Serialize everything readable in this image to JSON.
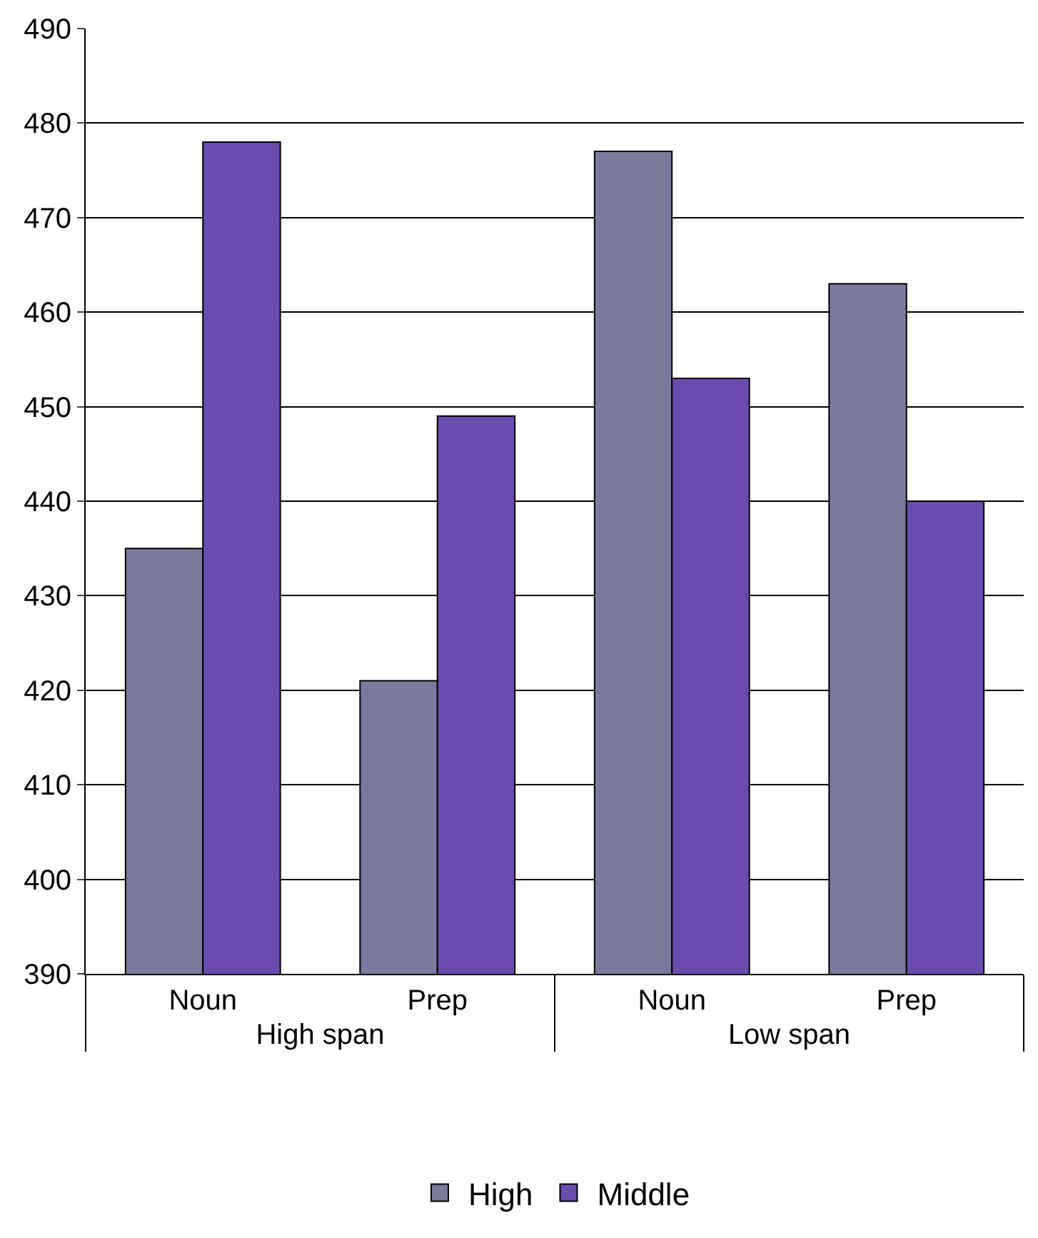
{
  "chart_data": {
    "type": "bar",
    "categories": [
      "Noun",
      "Prep",
      "Noun",
      "Prep"
    ],
    "annotations": [
      "High span",
      "Low span"
    ],
    "series": [
      {
        "name": "High",
        "color": "#7a7a9c",
        "values": [
          435,
          421,
          477,
          463
        ]
      },
      {
        "name": "Middle",
        "color": "#6a4caf",
        "values": [
          478,
          449,
          453,
          440
        ]
      }
    ],
    "ylim": [
      390,
      490
    ],
    "yticks": [
      390,
      400,
      410,
      420,
      430,
      440,
      450,
      460,
      470,
      480,
      490
    ],
    "grid": "y",
    "legend": "bottom"
  }
}
